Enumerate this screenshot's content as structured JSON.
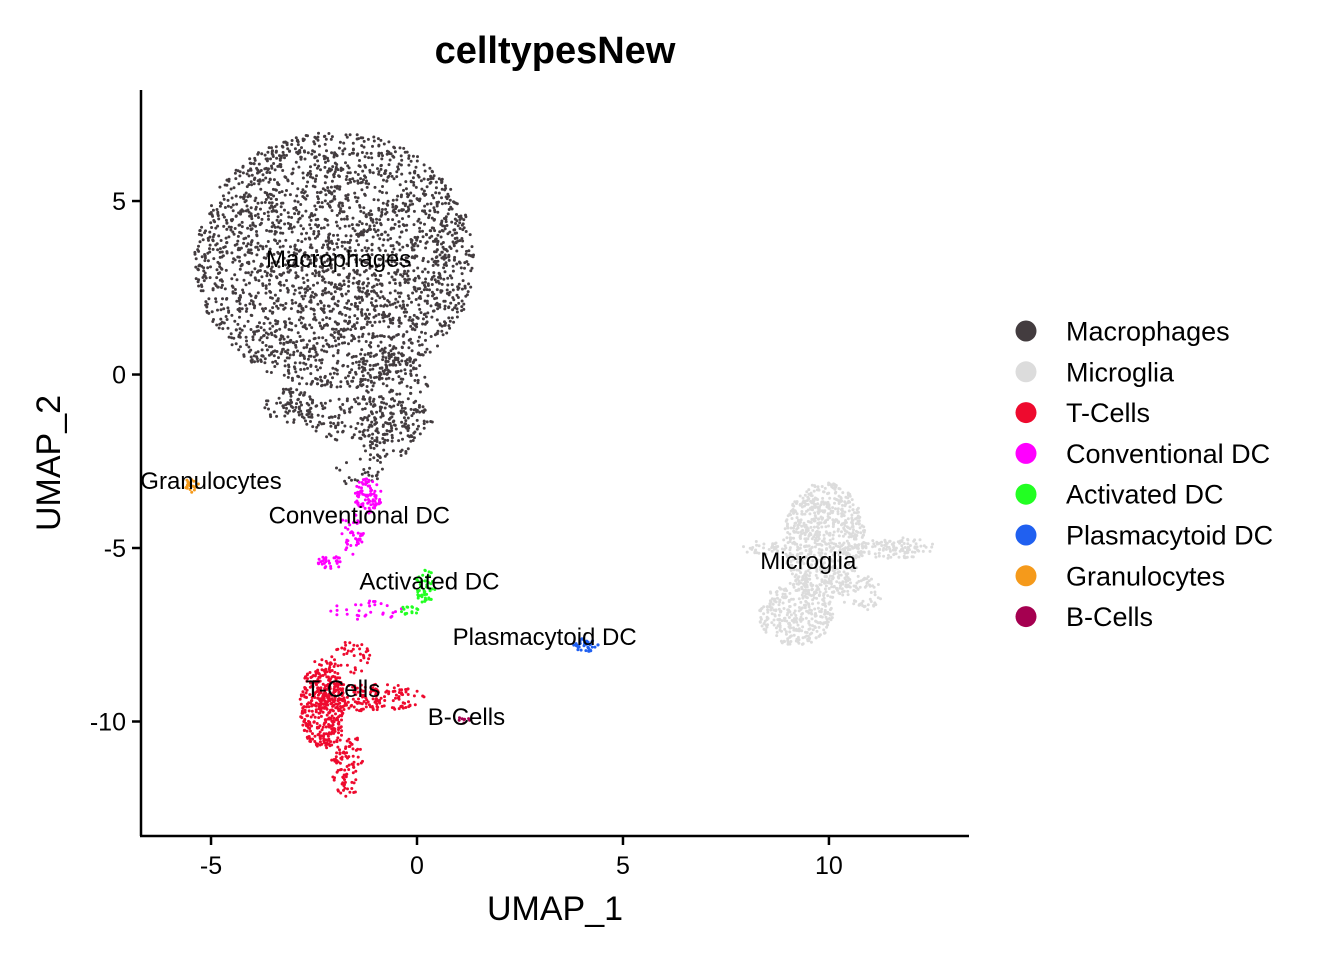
{
  "chart_data": {
    "type": "scatter",
    "title": "celltypesNew",
    "xlabel": "UMAP_1",
    "ylabel": "UMAP_2",
    "xlim": [
      -6.7,
      13.4
    ],
    "ylim": [
      -13.3,
      8.2
    ],
    "xticks": [
      -5,
      0,
      5,
      10
    ],
    "yticks": [
      5,
      0,
      -5,
      -10
    ],
    "legend_position": "right",
    "grid": false,
    "series": [
      {
        "name": "Macrophages",
        "color": "#433C3F",
        "label_pos": [
          -1.9,
          3.1
        ],
        "blobs": [
          {
            "cx": -2.0,
            "cy": 3.3,
            "rx": 3.4,
            "ry": 3.7,
            "n": 2600
          },
          {
            "cx": -0.6,
            "cy": -0.8,
            "rx": 0.9,
            "ry": 1.6,
            "n": 180
          },
          {
            "cx": -1.2,
            "cy": -1.3,
            "rx": 1.6,
            "ry": 0.7,
            "n": 160
          },
          {
            "cx": -3.1,
            "cy": -0.9,
            "rx": 0.6,
            "ry": 0.5,
            "n": 80
          },
          {
            "cx": -1.0,
            "cy": -2.0,
            "rx": 0.3,
            "ry": 1.3,
            "n": 40
          },
          {
            "cx": -1.5,
            "cy": -2.8,
            "rx": 0.6,
            "ry": 0.4,
            "n": 20
          }
        ]
      },
      {
        "name": "Microglia",
        "color": "#DCDCDC",
        "label_pos": [
          9.5,
          -5.6
        ],
        "blobs": [
          {
            "cx": 9.9,
            "cy": -4.8,
            "rx": 1.0,
            "ry": 1.7,
            "n": 750
          },
          {
            "cx": 9.2,
            "cy": -6.9,
            "rx": 0.9,
            "ry": 0.9,
            "n": 320
          },
          {
            "cx": 11.6,
            "cy": -5.0,
            "rx": 1.0,
            "ry": 0.3,
            "n": 120
          },
          {
            "cx": 8.4,
            "cy": -5.0,
            "rx": 0.5,
            "ry": 0.2,
            "n": 30
          },
          {
            "cx": 10.8,
            "cy": -6.3,
            "rx": 0.5,
            "ry": 0.5,
            "n": 60
          }
        ]
      },
      {
        "name": "T-Cells",
        "color": "#EE0A2E",
        "label_pos": [
          -1.8,
          -9.3
        ],
        "blobs": [
          {
            "cx": -2.3,
            "cy": -9.5,
            "rx": 0.55,
            "ry": 1.3,
            "n": 360
          },
          {
            "cx": -1.2,
            "cy": -9.3,
            "rx": 1.4,
            "ry": 0.4,
            "n": 200
          },
          {
            "cx": -1.7,
            "cy": -11.2,
            "rx": 0.4,
            "ry": 1.0,
            "n": 100
          },
          {
            "cx": -1.6,
            "cy": -8.2,
            "rx": 0.5,
            "ry": 0.5,
            "n": 40
          }
        ]
      },
      {
        "name": "Conventional DC",
        "color": "#FF00FF",
        "label_pos": [
          -1.4,
          -4.3
        ],
        "blobs": [
          {
            "cx": -1.2,
            "cy": -3.5,
            "rx": 0.35,
            "ry": 0.5,
            "n": 90
          },
          {
            "cx": -1.6,
            "cy": -4.6,
            "rx": 0.3,
            "ry": 0.6,
            "n": 40
          },
          {
            "cx": -2.1,
            "cy": -5.4,
            "rx": 0.3,
            "ry": 0.2,
            "n": 30
          },
          {
            "cx": -1.2,
            "cy": -6.8,
            "rx": 0.9,
            "ry": 0.3,
            "n": 30
          }
        ]
      },
      {
        "name": "Activated DC",
        "color": "#22FF22",
        "label_pos": [
          0.3,
          -6.2
        ],
        "blobs": [
          {
            "cx": 0.2,
            "cy": -6.1,
            "rx": 0.25,
            "ry": 0.5,
            "n": 50
          },
          {
            "cx": -0.2,
            "cy": -6.8,
            "rx": 0.25,
            "ry": 0.2,
            "n": 15
          }
        ]
      },
      {
        "name": "Plasmacytoid DC",
        "color": "#2060F0",
        "label_pos": [
          3.1,
          -7.8
        ],
        "blobs": [
          {
            "cx": 4.1,
            "cy": -7.8,
            "rx": 0.3,
            "ry": 0.2,
            "n": 40
          }
        ]
      },
      {
        "name": "Granulocytes",
        "color": "#F59A1B",
        "label_pos": [
          -5.0,
          -3.3
        ],
        "blobs": [
          {
            "cx": -5.5,
            "cy": -3.2,
            "rx": 0.2,
            "ry": 0.2,
            "n": 18
          }
        ]
      },
      {
        "name": "B-Cells",
        "color": "#A50050",
        "label_pos": [
          1.2,
          -10.1
        ],
        "blobs": [
          {
            "cx": 1.15,
            "cy": -9.95,
            "rx": 0.15,
            "ry": 0.1,
            "n": 8
          }
        ]
      }
    ]
  }
}
